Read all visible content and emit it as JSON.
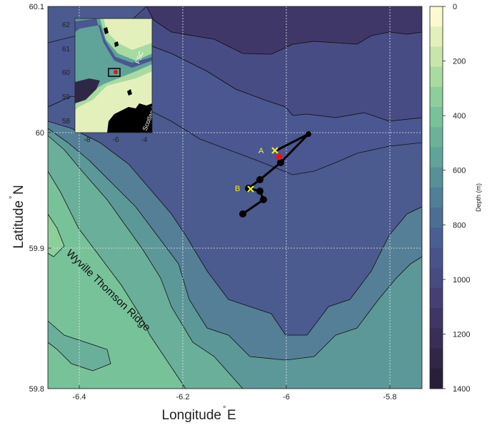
{
  "map": {
    "xlabel": "Longitude",
    "xlabel_unit": "E",
    "ylabel": "Latitude",
    "ylabel_unit": "N",
    "xticks": [
      "-6.4",
      "-6.2",
      "-6",
      "-5.8"
    ],
    "yticks": [
      "60.1",
      "60",
      "59.9",
      "59.8"
    ],
    "ridge_label": "Wyville Thomson Ridge",
    "point_a_label": "A",
    "point_b_label": "B"
  },
  "colorbar": {
    "label": "Depth (m)",
    "ticks": [
      "0",
      "200",
      "400",
      "600",
      "800",
      "1000",
      "1200",
      "1400"
    ],
    "colors": [
      "#fbf9cf",
      "#e4f0bb",
      "#c7e5ac",
      "#a8dba2",
      "#8ccf9b",
      "#78c29a",
      "#6ab39a",
      "#5fa399",
      "#579197",
      "#4f8095",
      "#4b6e93",
      "#4a5f91",
      "#4a528c",
      "#484a82",
      "#453f74",
      "#3f3665",
      "#382e56",
      "#302747",
      "#281f39"
    ]
  },
  "inset": {
    "xticks": [
      "-8",
      "-6",
      "-4"
    ],
    "yticks": [
      "62",
      "61",
      "60",
      "59",
      "58"
    ],
    "channel_label": "FSC",
    "land_label": "Scotland"
  },
  "track": {
    "color": "#000000",
    "point_a_marker": "yellow-x",
    "point_b_marker": "yellow-x",
    "highlight_color": "#e4141b"
  }
}
